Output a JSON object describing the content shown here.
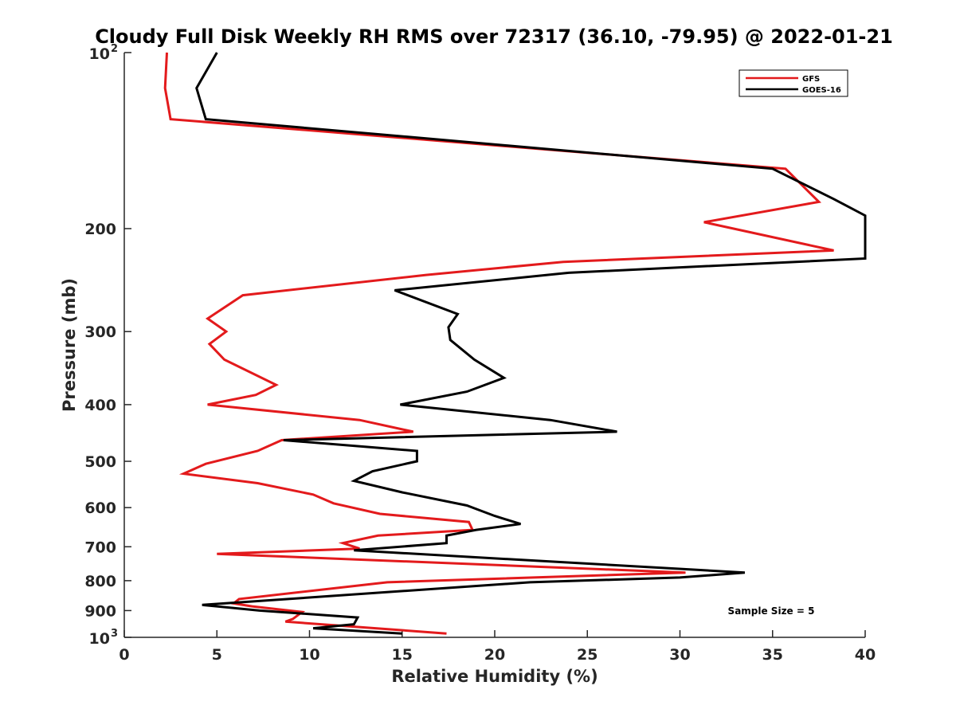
{
  "chart_data": {
    "type": "line",
    "title": "Cloudy Full Disk Weekly RH RMS over 72317 (36.10, -79.95) @ 2022-01-21",
    "xlabel": "Relative Humidity (%)",
    "ylabel": "Pressure (mb)",
    "xlim": [
      0,
      40
    ],
    "ylim": [
      100,
      1000
    ],
    "yscale": "log",
    "y_reversed": true,
    "x_ticks": [
      "0",
      "5",
      "10",
      "15",
      "20",
      "25",
      "30",
      "35",
      "40"
    ],
    "y_ticks": [
      {
        "value": 100,
        "base": "10",
        "exp": "2"
      },
      {
        "value": 200,
        "label": "200"
      },
      {
        "value": 300,
        "label": "300"
      },
      {
        "value": 400,
        "label": "400"
      },
      {
        "value": 500,
        "label": "500"
      },
      {
        "value": 600,
        "label": "600"
      },
      {
        "value": 700,
        "label": "700"
      },
      {
        "value": 800,
        "label": "800"
      },
      {
        "value": 900,
        "label": "900"
      },
      {
        "value": 1000,
        "base": "10",
        "exp": "3"
      }
    ],
    "legend_position": "top-right",
    "annotation": "Sample Size = 5",
    "series": [
      {
        "name": "GFS",
        "color": "#e31a1c",
        "points": [
          [
            2.3,
            100
          ],
          [
            2.2,
            115
          ],
          [
            2.5,
            130
          ],
          [
            35.7,
            158
          ],
          [
            37.5,
            180
          ],
          [
            31.3,
            195
          ],
          [
            38.3,
            218
          ],
          [
            23.7,
            228
          ],
          [
            16.3,
            240
          ],
          [
            6.4,
            260
          ],
          [
            4.5,
            285
          ],
          [
            5.5,
            300
          ],
          [
            4.6,
            315
          ],
          [
            5.4,
            335
          ],
          [
            8.2,
            370
          ],
          [
            7.1,
            385
          ],
          [
            4.5,
            400
          ],
          [
            12.7,
            425
          ],
          [
            15.6,
            445
          ],
          [
            8.5,
            460
          ],
          [
            7.2,
            480
          ],
          [
            4.4,
            505
          ],
          [
            3.2,
            525
          ],
          [
            7.2,
            545
          ],
          [
            10.2,
            570
          ],
          [
            11.3,
            590
          ],
          [
            13.8,
            615
          ],
          [
            18.6,
            635
          ],
          [
            18.8,
            655
          ],
          [
            13.7,
            670
          ],
          [
            11.8,
            690
          ],
          [
            12.7,
            705
          ],
          [
            5.0,
            720
          ],
          [
            30.3,
            775
          ],
          [
            14.2,
            805
          ],
          [
            6.2,
            860
          ],
          [
            5.9,
            875
          ],
          [
            6.9,
            885
          ],
          [
            9.6,
            905
          ],
          [
            9.1,
            930
          ],
          [
            8.7,
            940
          ],
          [
            17.4,
            985
          ]
        ]
      },
      {
        "name": "GOES-16",
        "color": "#000000",
        "points": [
          [
            5.0,
            100
          ],
          [
            3.9,
            115
          ],
          [
            4.4,
            130
          ],
          [
            35.0,
            158
          ],
          [
            38.3,
            178
          ],
          [
            40.0,
            190
          ],
          [
            40.0,
            225
          ],
          [
            24.0,
            238
          ],
          [
            14.6,
            255
          ],
          [
            18.0,
            280
          ],
          [
            17.5,
            295
          ],
          [
            17.6,
            310
          ],
          [
            18.9,
            335
          ],
          [
            20.5,
            360
          ],
          [
            18.5,
            380
          ],
          [
            14.9,
            400
          ],
          [
            23.0,
            425
          ],
          [
            26.6,
            445
          ],
          [
            8.6,
            460
          ],
          [
            15.8,
            480
          ],
          [
            15.8,
            500
          ],
          [
            13.4,
            520
          ],
          [
            12.4,
            540
          ],
          [
            15.0,
            565
          ],
          [
            18.5,
            595
          ],
          [
            20.0,
            620
          ],
          [
            21.4,
            640
          ],
          [
            19.0,
            655
          ],
          [
            17.4,
            670
          ],
          [
            17.4,
            690
          ],
          [
            12.4,
            710
          ],
          [
            33.5,
            775
          ],
          [
            30.0,
            790
          ],
          [
            21.9,
            805
          ],
          [
            4.2,
            880
          ],
          [
            7.3,
            900
          ],
          [
            12.6,
            925
          ],
          [
            12.4,
            950
          ],
          [
            10.2,
            965
          ],
          [
            15.0,
            985
          ]
        ]
      }
    ]
  }
}
